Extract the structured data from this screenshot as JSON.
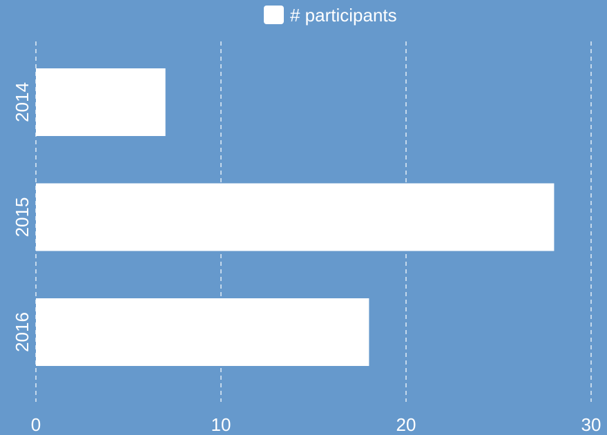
{
  "chart_data": {
    "type": "bar",
    "orientation": "horizontal",
    "categories": [
      "2014",
      "2015",
      "2016"
    ],
    "series": [
      {
        "name": "# participants",
        "values": [
          7,
          28,
          18
        ],
        "color": "#ffffff"
      }
    ],
    "x_ticks": [
      "0",
      "10",
      "20",
      "30"
    ],
    "xlim": [
      0,
      30
    ],
    "grid": true,
    "legend_position": "top-center",
    "background_color": "#6699cc"
  }
}
